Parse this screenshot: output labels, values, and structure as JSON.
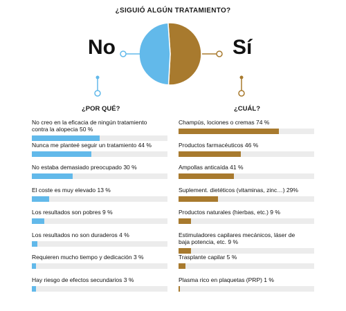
{
  "colors": {
    "no": "#62b9ea",
    "si": "#a87a2e",
    "track": "#ececec"
  },
  "title": "¿SIGUIÓ ALGÚN TRATAMIENTO?",
  "no_label": "No",
  "si_label": "Sí",
  "left_heading": "¿POR QUÉ?",
  "right_heading": "¿CUÁL?",
  "chart_data": [
    {
      "type": "pie",
      "title": "¿SIGUIÓ ALGÚN TRATAMIENTO?",
      "categories": [
        "No",
        "Sí"
      ],
      "values": [
        48,
        52
      ],
      "colors": [
        "#62b9ea",
        "#a87a2e"
      ]
    },
    {
      "type": "bar",
      "orientation": "horizontal",
      "title": "¿POR QUÉ?",
      "xlim": [
        0,
        100
      ],
      "unit": "%",
      "categories": [
        "No creo en la eficacia de ningún tratamiento contra la alopecia",
        "Nunca me planteé seguir un tratamiento",
        "No estaba demasiado preocupado",
        "El coste es muy elevado",
        "Los resultados son pobres",
        "Los resultados no son duraderos",
        "Requieren mucho tiempo y dedicación",
        "Hay riesgo de efectos secundarios"
      ],
      "labels": [
        [
          "No creo en la eficacia de ningún tratamiento",
          "contra la alopecia 50 %"
        ],
        [
          "Nunca me planteé seguir un tratamiento 44 %"
        ],
        [
          "No estaba demasiado preocupado 30 %"
        ],
        [
          "El coste es muy elevado 13 %"
        ],
        [
          "Los resultados son pobres 9 %"
        ],
        [
          "Los resultados no son duraderos 4 %"
        ],
        [
          "Requieren mucho tiempo y dedicación 3 %"
        ],
        [
          "Hay riesgo de efectos secundarios 3 %"
        ]
      ],
      "values": [
        50,
        44,
        30,
        13,
        9,
        4,
        3,
        3
      ],
      "color": "#62b9ea"
    },
    {
      "type": "bar",
      "orientation": "horizontal",
      "title": "¿CUÁL?",
      "xlim": [
        0,
        100
      ],
      "unit": "%",
      "categories": [
        "Champús, lociones o cremas",
        "Productos farmacéuticos",
        "Ampollas anticaída",
        "Suplement. dietéticos (vitaminas, zinc…)",
        "Productos naturales (hierbas, etc.)",
        "Estimuladores capilares mecánicos, láser de baja potencia, etc.",
        "Trasplante capilar",
        "Plasma rico en plaquetas (PRP)"
      ],
      "labels": [
        [
          "Champús, lociones o cremas 74 %"
        ],
        [
          "Productos farmacéuticos 46 %"
        ],
        [
          "Ampollas anticaída 41 %"
        ],
        [
          "Suplement. dietéticos (vitaminas, zinc…) 29%"
        ],
        [
          "Productos naturales (hierbas, etc.) 9 %"
        ],
        [
          "Estimuladores capilares mecánicos, láser de",
          "baja potencia, etc. 9 %"
        ],
        [
          "Trasplante capilar 5 %"
        ],
        [
          "Plasma rico en plaquetas (PRP) 1 %"
        ]
      ],
      "values": [
        74,
        46,
        41,
        29,
        9,
        9,
        5,
        1
      ],
      "color": "#a87a2e"
    }
  ]
}
